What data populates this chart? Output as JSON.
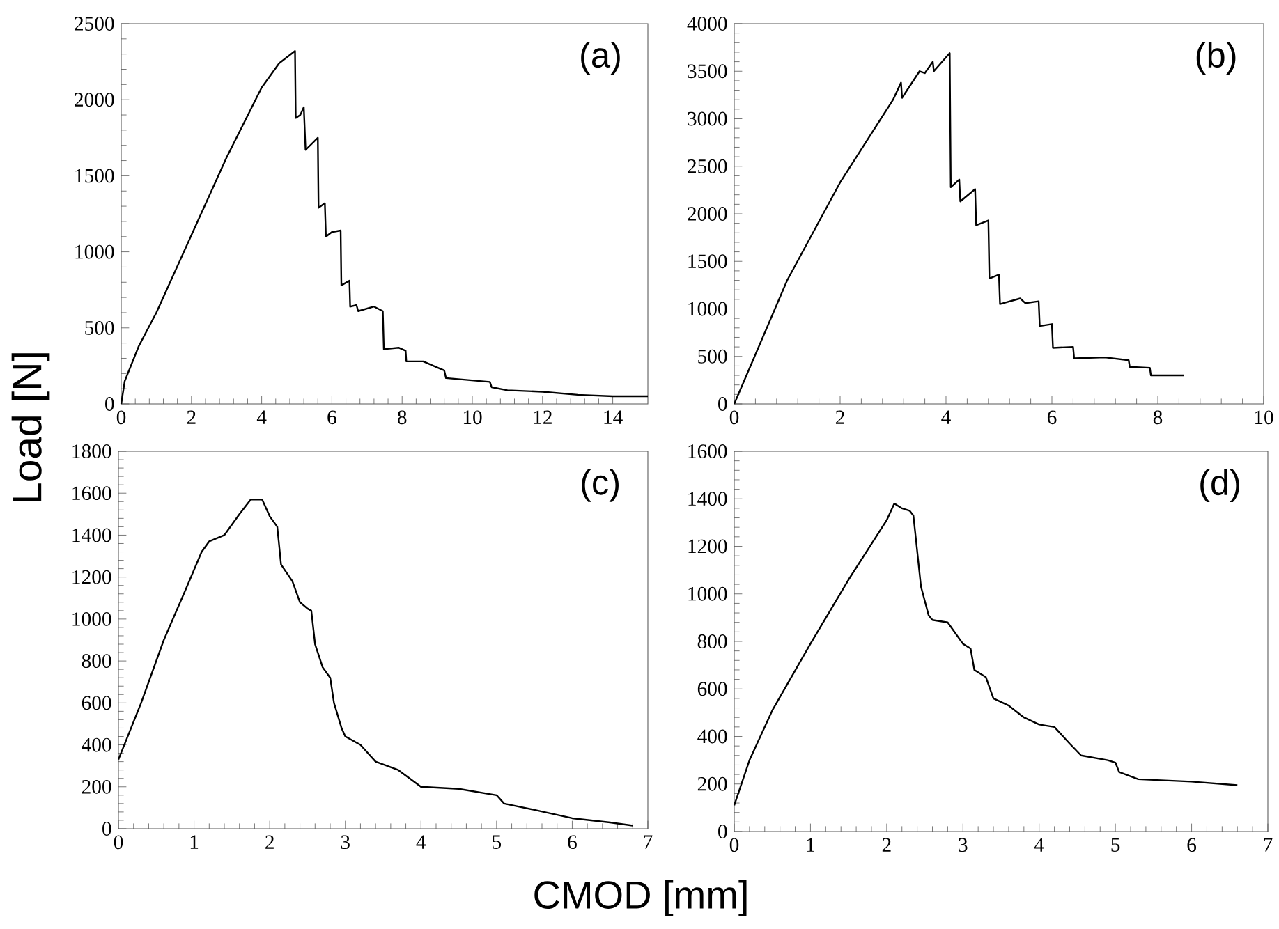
{
  "chart_data": [
    {
      "type": "line",
      "title": "(a)",
      "ylabel": "Load [N]",
      "color": "#000000",
      "xlim": [
        0,
        15
      ],
      "ylim": [
        0,
        2500
      ],
      "xticks": [
        0,
        2,
        4,
        6,
        8,
        10,
        12,
        14
      ],
      "yticks": [
        0,
        500,
        1000,
        1500,
        2000,
        2500
      ],
      "x": [
        0,
        0.1,
        0.5,
        1,
        2,
        3,
        4,
        4.5,
        4.95,
        4.97,
        5.1,
        5.2,
        5.25,
        5.6,
        5.62,
        5.8,
        5.83,
        6.0,
        6.25,
        6.27,
        6.5,
        6.52,
        6.7,
        6.75,
        7.2,
        7.45,
        7.48,
        7.9,
        8.1,
        8.12,
        8.6,
        9.0,
        9.2,
        9.25,
        10.5,
        10.55,
        11,
        12,
        13,
        14,
        15
      ],
      "values": [
        0,
        150,
        380,
        600,
        1110,
        1620,
        2080,
        2240,
        2320,
        1880,
        1900,
        1950,
        1670,
        1750,
        1290,
        1320,
        1100,
        1130,
        1140,
        780,
        810,
        640,
        650,
        610,
        640,
        610,
        360,
        370,
        350,
        280,
        280,
        240,
        220,
        170,
        145,
        110,
        90,
        80,
        60,
        50,
        50
      ]
    },
    {
      "type": "line",
      "title": "(b)",
      "color": "#000000",
      "xlim": [
        0,
        10
      ],
      "ylim": [
        0,
        4000
      ],
      "xticks": [
        0,
        2,
        4,
        6,
        8,
        10
      ],
      "yticks": [
        0,
        500,
        1000,
        1500,
        2000,
        2500,
        3000,
        3500,
        4000
      ],
      "x": [
        0,
        1,
        2,
        3,
        3.15,
        3.17,
        3.5,
        3.6,
        3.75,
        3.77,
        4.07,
        4.09,
        4.25,
        4.27,
        4.55,
        4.57,
        4.8,
        4.82,
        5.0,
        5.02,
        5.4,
        5.5,
        5.75,
        5.77,
        6.0,
        6.02,
        6.4,
        6.42,
        7.0,
        7.45,
        7.47,
        7.85,
        7.87,
        8.5
      ],
      "values": [
        0,
        1300,
        2330,
        3200,
        3380,
        3220,
        3500,
        3480,
        3600,
        3500,
        3690,
        2280,
        2360,
        2130,
        2260,
        1880,
        1930,
        1320,
        1360,
        1050,
        1110,
        1060,
        1080,
        820,
        840,
        590,
        600,
        480,
        490,
        460,
        390,
        380,
        300,
        300
      ]
    },
    {
      "type": "line",
      "title": "(c)",
      "xlabel": "CMOD [mm]",
      "color": "#000000",
      "xlim": [
        0,
        7
      ],
      "ylim": [
        0,
        1800
      ],
      "xticks": [
        0,
        1,
        2,
        3,
        4,
        5,
        6,
        7
      ],
      "yticks": [
        0,
        200,
        400,
        600,
        800,
        1000,
        1200,
        1400,
        1600,
        1800
      ],
      "x": [
        0,
        0.3,
        0.6,
        0.9,
        1.1,
        1.2,
        1.4,
        1.6,
        1.75,
        1.9,
        2.0,
        2.1,
        2.15,
        2.3,
        2.4,
        2.5,
        2.55,
        2.6,
        2.7,
        2.8,
        2.85,
        2.95,
        3.0,
        3.2,
        3.4,
        3.7,
        4.0,
        4.5,
        5.0,
        5.1,
        5.5,
        6.0,
        6.5,
        6.8
      ],
      "values": [
        330,
        600,
        900,
        1150,
        1320,
        1370,
        1400,
        1500,
        1570,
        1570,
        1490,
        1440,
        1260,
        1180,
        1080,
        1050,
        1040,
        880,
        770,
        720,
        600,
        480,
        440,
        400,
        320,
        280,
        200,
        190,
        160,
        120,
        90,
        50,
        30,
        15
      ]
    },
    {
      "type": "line",
      "title": "(d)",
      "color": "#000000",
      "xlim": [
        0,
        7
      ],
      "ylim": [
        0,
        1600
      ],
      "xticks": [
        0,
        1,
        2,
        3,
        4,
        5,
        6,
        7
      ],
      "yticks": [
        0,
        200,
        400,
        600,
        800,
        1000,
        1200,
        1400,
        1600
      ],
      "x": [
        0,
        0.2,
        0.5,
        1,
        1.5,
        2.0,
        2.1,
        2.2,
        2.3,
        2.35,
        2.45,
        2.55,
        2.6,
        2.8,
        3.0,
        3.1,
        3.15,
        3.3,
        3.4,
        3.6,
        3.8,
        4.0,
        4.2,
        4.4,
        4.55,
        4.9,
        5.0,
        5.05,
        5.3,
        6.0,
        6.6
      ],
      "values": [
        110,
        300,
        510,
        790,
        1060,
        1310,
        1380,
        1360,
        1350,
        1330,
        1030,
        910,
        890,
        880,
        790,
        770,
        680,
        650,
        560,
        530,
        480,
        450,
        440,
        370,
        320,
        300,
        290,
        250,
        220,
        210,
        195
      ]
    }
  ]
}
